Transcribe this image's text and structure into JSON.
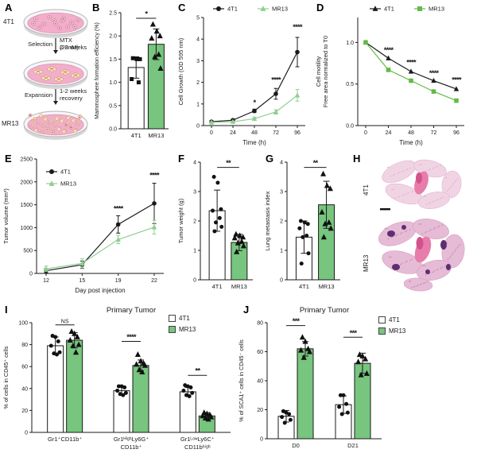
{
  "letters": {
    "a": "A",
    "b": "B",
    "c": "C",
    "d": "D",
    "e": "E",
    "f": "F",
    "g": "G",
    "h": "H",
    "i": "I",
    "j": "J"
  },
  "colors": {
    "mr13_bar_green": "#77c57e",
    "mr13_line_green": "#8fce92",
    "mr13_motility_green": "#62bb46",
    "series_black": "#1a1a1a"
  },
  "panel_a": {
    "cell_line_top": "4T1",
    "cell_line_bottom": "MR13",
    "step1_label": "Selection",
    "step1_note1": "MTX (28nM)",
    "step1_note2": "2-3 weeks",
    "step2_label": "Expansion",
    "step2_note1": "1-2 weeks",
    "step2_note2": "recovery"
  },
  "panel_h": {
    "top_label": "4T1",
    "bottom_label": "MR13"
  },
  "legends": {
    "i": [
      {
        "label": "4T1",
        "color": "#ffffff"
      },
      {
        "label": "MR13",
        "color": "#77c57e"
      }
    ],
    "j": [
      {
        "label": "4T1",
        "color": "#ffffff"
      },
      {
        "label": "MR13",
        "color": "#77c57e"
      }
    ]
  },
  "chart_data": [
    {
      "id": "B",
      "type": "bar",
      "ylabel": "Mammosphere formation efficiency (%)",
      "ylim": [
        0,
        2.5
      ],
      "yticks": [
        "0.0",
        "0.5",
        "1.0",
        "1.5",
        "2.0",
        "2.5"
      ],
      "categories": [
        "4T1",
        "MR13"
      ],
      "series": [
        {
          "name": "4T1",
          "fill": "#ffffff",
          "marker": "square",
          "value": 1.32,
          "error": 0.23,
          "points": [
            1.52,
            1.5,
            1.5,
            1.07,
            1.0
          ]
        },
        {
          "name": "MR13",
          "fill": "#77c57e",
          "marker": "triangle",
          "value": 1.82,
          "error": 0.33,
          "points": [
            2.25,
            2.1,
            2.0,
            1.95,
            1.6,
            1.55,
            1.3
          ]
        }
      ],
      "sig": [
        {
          "label": "*",
          "y": 2.38
        }
      ]
    },
    {
      "id": "C",
      "type": "line",
      "ylabel": "Cell Growth (OD 595 nm)",
      "xlabel": "Time (h)",
      "x": [
        0,
        24,
        48,
        72,
        96
      ],
      "ylim": [
        0,
        5
      ],
      "yticks": [
        "0",
        "1",
        "2",
        "3",
        "4",
        "5"
      ],
      "legend": "top",
      "series": [
        {
          "name": "4T1",
          "color": "#1a1a1a",
          "marker": "circle",
          "values": [
            0.18,
            0.25,
            0.68,
            1.47,
            3.4
          ],
          "errors": [
            0.04,
            0.05,
            0.08,
            0.25,
            0.68
          ]
        },
        {
          "name": "MR13",
          "color": "#8fce92",
          "marker": "triangle",
          "values": [
            0.15,
            0.18,
            0.32,
            0.63,
            1.4
          ],
          "errors": [
            0.03,
            0.03,
            0.06,
            0.1,
            0.27
          ]
        }
      ],
      "sig": [
        {
          "i": 2,
          "y": 0.95,
          "label": "*"
        },
        {
          "i": 3,
          "y": 2.0,
          "label": "****"
        },
        {
          "i": 4,
          "y": 4.45,
          "label": "****"
        }
      ]
    },
    {
      "id": "D",
      "type": "line",
      "ylabel": "Cell motility",
      "ylabel2": "Free area normalized to T0",
      "xlabel": "Time (h)",
      "x": [
        0,
        24,
        48,
        72,
        96
      ],
      "ylim": [
        0,
        1.3
      ],
      "yticks": [
        "0.0",
        "0.5",
        "1.0"
      ],
      "legend": "top",
      "series": [
        {
          "name": "4T1",
          "color": "#1a1a1a",
          "marker": "triangle",
          "values": [
            1.0,
            0.81,
            0.65,
            0.54,
            0.44
          ]
        },
        {
          "name": "MR13",
          "color": "#62bb46",
          "marker": "square",
          "values": [
            1.0,
            0.67,
            0.54,
            0.41,
            0.3
          ]
        }
      ],
      "sig": [
        {
          "i": 1,
          "y": 0.88,
          "label": "****"
        },
        {
          "i": 2,
          "y": 0.73,
          "label": "****"
        },
        {
          "i": 3,
          "y": 0.6,
          "label": "****"
        },
        {
          "i": 4,
          "y": 0.52,
          "label": "****"
        }
      ]
    },
    {
      "id": "E",
      "type": "line",
      "ylabel": "Tumor volume (mm³)",
      "xlabel": "Day post injection",
      "x": [
        12,
        15,
        19,
        22
      ],
      "ylim": [
        0,
        2500
      ],
      "yticks": [
        "0",
        "500",
        "1000",
        "1500",
        "2000",
        "2500"
      ],
      "legend": "inside",
      "series": [
        {
          "name": "4T1",
          "color": "#1a1a1a",
          "marker": "circle",
          "values": [
            60,
            190,
            1070,
            1530
          ],
          "errors": [
            45,
            80,
            190,
            440
          ]
        },
        {
          "name": "MR13",
          "color": "#8fce92",
          "marker": "triangle",
          "values": [
            100,
            220,
            740,
            1010
          ],
          "errors": [
            60,
            100,
            90,
            150
          ]
        }
      ],
      "sig": [
        {
          "i": 2,
          "y": 1360,
          "label": "****"
        },
        {
          "i": 3,
          "y": 2090,
          "label": "****"
        }
      ]
    },
    {
      "id": "F",
      "type": "bar",
      "ylabel": "Tumor weight (g)",
      "ylim": [
        0,
        4
      ],
      "yticks": [
        "0",
        "1",
        "2",
        "3",
        "4"
      ],
      "categories": [
        "4T1",
        "MR13"
      ],
      "series": [
        {
          "name": "4T1",
          "fill": "#ffffff",
          "marker": "circle",
          "value": 2.35,
          "error": 0.7,
          "points": [
            3.5,
            3.3,
            2.4,
            2.35,
            2.1,
            1.95,
            1.8,
            1.65
          ]
        },
        {
          "name": "MR13",
          "fill": "#77c57e",
          "marker": "triangle",
          "value": 1.27,
          "error": 0.28,
          "points": [
            1.55,
            1.5,
            1.45,
            1.42,
            1.3,
            1.25,
            1.15,
            0.95
          ]
        }
      ],
      "sig": [
        {
          "label": "**",
          "y": 3.82
        }
      ]
    },
    {
      "id": "G",
      "type": "bar",
      "ylabel": "Lung metastasis index",
      "ylim": [
        0,
        4
      ],
      "yticks": [
        "0",
        "1",
        "2",
        "3",
        "4"
      ],
      "categories": [
        "4T1",
        "MR13"
      ],
      "series": [
        {
          "name": "4T1",
          "fill": "#ffffff",
          "marker": "circle",
          "value": 1.45,
          "error": 0.55,
          "points": [
            2.0,
            1.95,
            1.9,
            1.75,
            1.5,
            1.45,
            0.9,
            0.55
          ]
        },
        {
          "name": "MR13",
          "fill": "#77c57e",
          "marker": "triangle",
          "value": 2.55,
          "error": 0.8,
          "points": [
            3.6,
            3.2,
            3.1,
            2.3,
            1.95,
            1.9,
            1.75,
            1.45
          ]
        }
      ],
      "sig": [
        {
          "label": "**",
          "y": 3.82
        }
      ]
    },
    {
      "id": "I",
      "type": "grouped-bar",
      "title": "Primary Tumor",
      "ylabel": "% of cells in CD45⁺ cells",
      "ylim": [
        0,
        100
      ],
      "yticks": [
        "0",
        "20",
        "40",
        "60",
        "80",
        "100"
      ],
      "groups": [
        [
          "Gr1⁺CD11b⁺",
          ""
        ],
        [
          "Gr1ᴴⁱᵍʰLy6G⁺",
          "CD11b⁺"
        ],
        [
          "Gr1ᴸᵒʷLy6C⁺",
          "CD11bʰⁱᵍʰ"
        ]
      ],
      "series": [
        {
          "name": "4T1",
          "fill": "#ffffff",
          "marker": "circle",
          "values": [
            79,
            38,
            37
          ],
          "errors": [
            8,
            4,
            4
          ],
          "points": [
            [
              88,
              87,
              83,
              79,
              73,
              72,
              71
            ],
            [
              42,
              42,
              41,
              38,
              36,
              35,
              34
            ],
            [
              43,
              42,
              41,
              38,
              36,
              34,
              33
            ]
          ]
        },
        {
          "name": "MR13",
          "fill": "#77c57e",
          "marker": "triangle",
          "values": [
            84,
            61,
            15
          ],
          "errors": [
            7,
            5,
            3
          ],
          "points": [
            [
              92,
              90,
              87,
              84,
              80,
              79,
              73
            ],
            [
              71,
              65,
              63,
              62,
              61,
              57,
              55
            ],
            [
              18,
              17,
              16,
              15,
              14,
              13,
              12
            ]
          ]
        }
      ],
      "sig": [
        {
          "label": "NS",
          "y": 98
        },
        {
          "label": "****",
          "y": 83
        },
        {
          "label": "**",
          "y": 52
        }
      ]
    },
    {
      "id": "J",
      "type": "grouped-bar",
      "title": "Primary Tumor",
      "ylabel": "% of SCA1⁺ cells in CD45⁻ cells",
      "ylim": [
        0,
        80
      ],
      "yticks": [
        "0",
        "20",
        "40",
        "60",
        "80"
      ],
      "groups": [
        [
          "D0",
          ""
        ],
        [
          "D21",
          ""
        ]
      ],
      "series": [
        {
          "name": "4T1",
          "fill": "#ffffff",
          "marker": "circle",
          "values": [
            15.5,
            23.5
          ],
          "errors": [
            4,
            6
          ],
          "points": [
            [
              19,
              18,
              17,
              15,
              13,
              11
            ],
            [
              30,
              30,
              24,
              22,
              18,
              17
            ]
          ]
        },
        {
          "name": "MR13",
          "fill": "#77c57e",
          "marker": "triangle",
          "values": [
            62,
            52
          ],
          "errors": [
            5,
            7
          ],
          "points": [
            [
              70,
              67,
              62,
              61,
              60,
              56
            ],
            [
              58,
              57,
              55,
              53,
              45,
              44
            ]
          ]
        }
      ],
      "sig": [
        {
          "label": "***",
          "y": 78
        },
        {
          "label": "***",
          "y": 70
        }
      ]
    }
  ]
}
